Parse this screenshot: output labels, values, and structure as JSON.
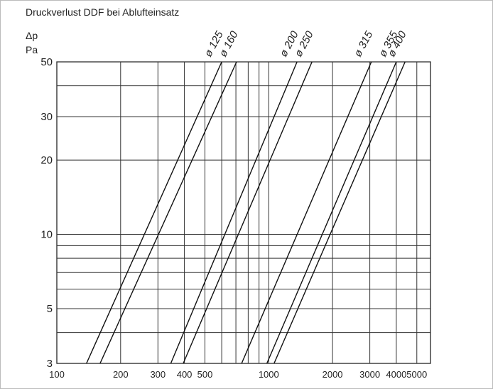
{
  "chart_data": {
    "type": "line",
    "title": "Druckverlust DDF bei Ablufteinsatz",
    "ylabel_symbol": "Δp",
    "ylabel_unit": "Pa",
    "xlabel": "",
    "x_scale": "log",
    "y_scale": "log",
    "xlim": [
      100,
      5800
    ],
    "ylim": [
      3,
      50
    ],
    "x_ticks": [
      100,
      200,
      300,
      400,
      500,
      1000,
      2000,
      3000,
      4000,
      5000
    ],
    "x_tick_labels": [
      "100",
      "200",
      "300",
      "400",
      "500",
      "1000",
      "2000",
      "3000",
      "4000",
      "5000"
    ],
    "y_ticks": [
      3,
      5,
      10,
      20,
      30,
      50
    ],
    "y_tick_labels": [
      "3",
      "5",
      "10",
      "20",
      "30",
      "50"
    ],
    "x_grid": [
      200,
      300,
      400,
      500,
      600,
      700,
      800,
      900,
      1000,
      2000,
      3000,
      4000,
      5000
    ],
    "y_grid": [
      4,
      5,
      6,
      7,
      8,
      9,
      10,
      20,
      30,
      40,
      50
    ],
    "grid": true,
    "series": [
      {
        "name": "ø 125",
        "points": [
          [
            138,
            3
          ],
          [
            600,
            50
          ]
        ]
      },
      {
        "name": "ø 160",
        "points": [
          [
            160,
            3
          ],
          [
            705,
            50
          ]
        ]
      },
      {
        "name": "ø 200",
        "points": [
          [
            345,
            3
          ],
          [
            1360,
            50
          ]
        ]
      },
      {
        "name": "ø 250",
        "points": [
          [
            395,
            3
          ],
          [
            1600,
            50
          ]
        ]
      },
      {
        "name": "ø 315",
        "points": [
          [
            745,
            3
          ],
          [
            3050,
            50
          ]
        ]
      },
      {
        "name": "ø 355",
        "points": [
          [
            980,
            3
          ],
          [
            4000,
            50
          ]
        ]
      },
      {
        "name": "ø 400",
        "points": [
          [
            1060,
            3
          ],
          [
            4400,
            50
          ]
        ]
      }
    ]
  }
}
